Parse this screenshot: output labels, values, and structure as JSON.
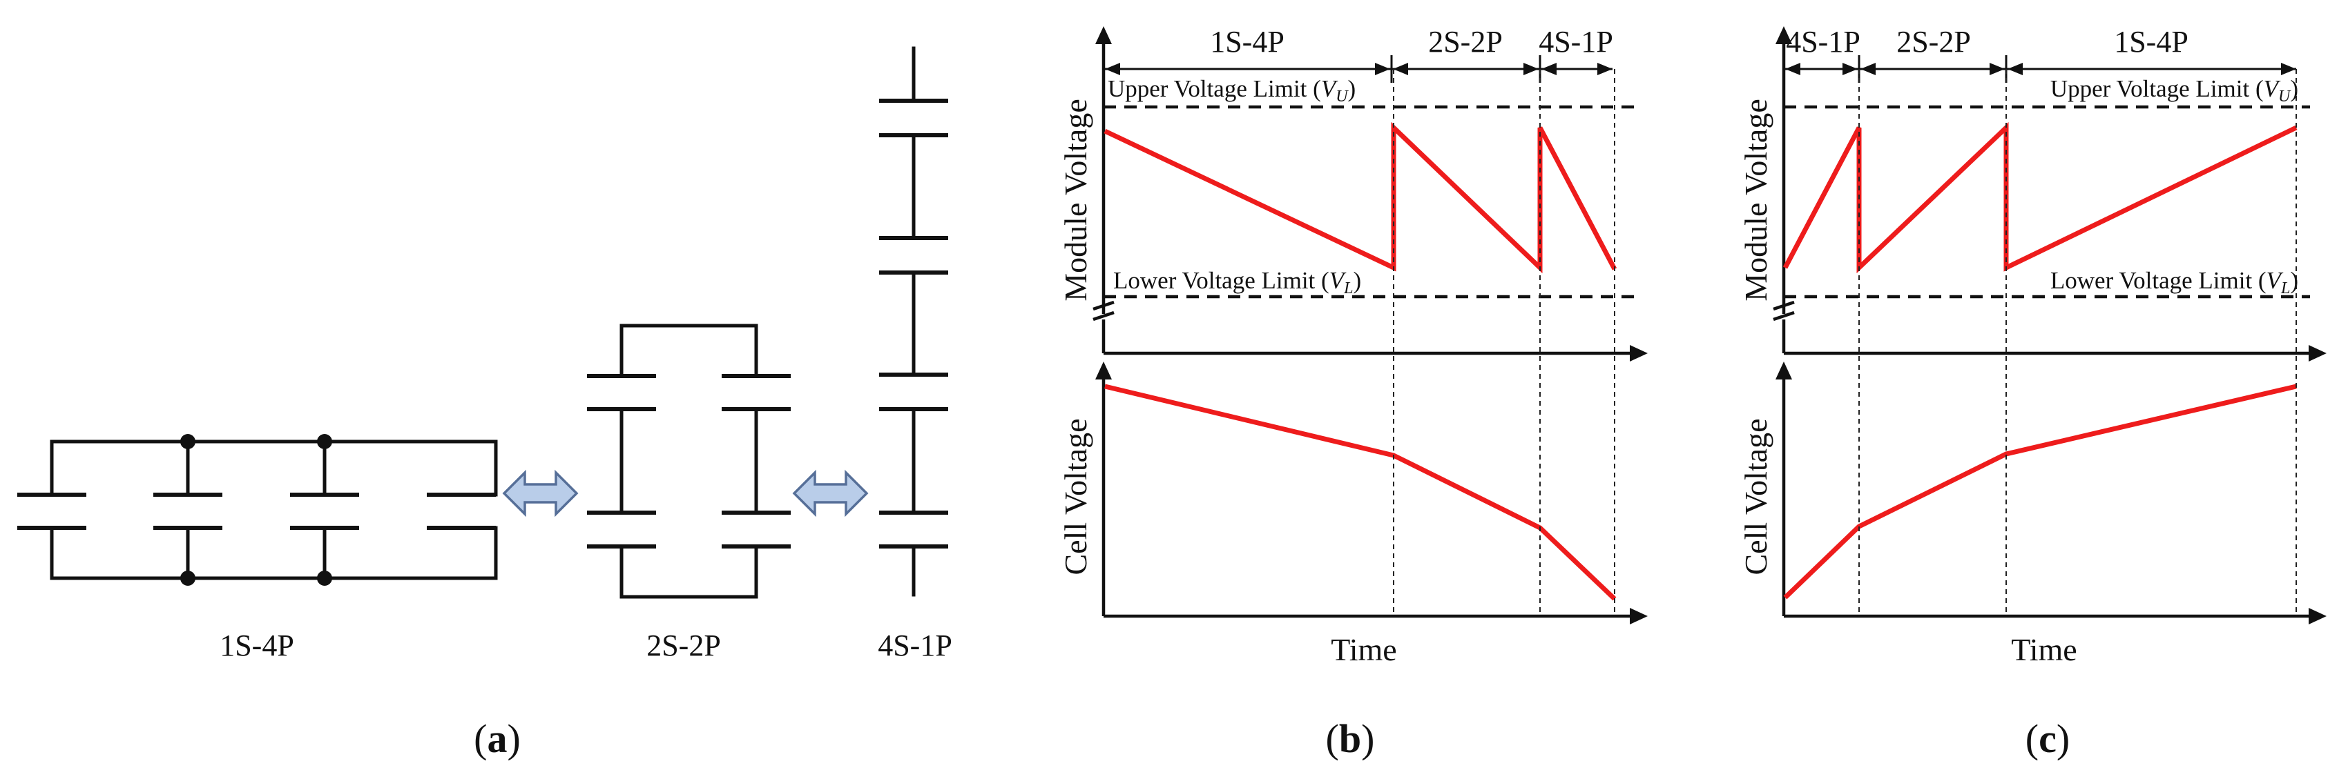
{
  "colors": {
    "curve": "#ee1c1c",
    "swap_fill": "#b9cde9",
    "swap_stroke": "#566f98",
    "line": "#111111"
  },
  "panel_a": {
    "label_1s4p": "1S-4P",
    "label_2s2p": "2S-2P",
    "label_4s1p": "4S-1P",
    "caption_open": "(",
    "caption_letter": "a",
    "caption_close": ")"
  },
  "panel_b": {
    "caption_open": "(",
    "caption_letter": "b",
    "caption_close": ")",
    "xlabel": "Time",
    "module_ylabel": "Module Voltage",
    "cell_ylabel": "Cell Voltage",
    "upper_limit_text": "Upper Voltage Limit (",
    "upper_limit_sym": "V",
    "upper_limit_sub": "U",
    "lower_limit_text": "Lower Voltage Limit (",
    "lower_limit_sym": "V",
    "lower_limit_sub": "L",
    "limit_close": ")",
    "phase_labels": [
      "1S-4P",
      "2S-2P",
      "4S-1P"
    ]
  },
  "panel_c": {
    "caption_open": "(",
    "caption_letter": "c",
    "caption_close": ")",
    "xlabel": "Time",
    "module_ylabel": "Module Voltage",
    "cell_ylabel": "Cell Voltage",
    "upper_limit_text": "Upper Voltage Limit (",
    "upper_limit_sym": "V",
    "upper_limit_sub": "U",
    "lower_limit_text": "Lower Voltage Limit (",
    "lower_limit_sym": "V",
    "lower_limit_sub": "L",
    "limit_close": ")",
    "phase_labels": [
      "4S-1P",
      "2S-2P",
      "1S-4P"
    ]
  }
}
